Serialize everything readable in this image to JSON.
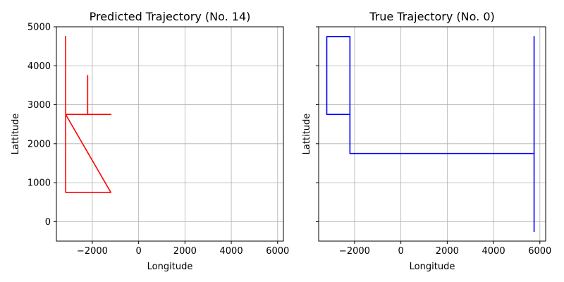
{
  "chart_data": [
    {
      "type": "line",
      "title": "Predicted Trajectory (No. 14)",
      "xlabel": "Longitude",
      "ylabel": "Lattitude",
      "xlim": [
        -3550,
        6250
      ],
      "ylim": [
        -500,
        5000
      ],
      "xticks": [
        -2000,
        0,
        2000,
        4000,
        6000
      ],
      "xtick_labels": [
        "−2000",
        "0",
        "2000",
        "4000",
        "6000"
      ],
      "yticks": [
        0,
        1000,
        2000,
        3000,
        4000,
        5000
      ],
      "ytick_labels": [
        "0",
        "1000",
        "2000",
        "3000",
        "4000",
        "5000"
      ],
      "show_ytick_labels": true,
      "grid": true,
      "series": [
        {
          "color": "#ff0000",
          "x": [
            -3150,
            -3150,
            -1200,
            -3150,
            -3150,
            -2200,
            -2200,
            -2200,
            -1200
          ],
          "y": [
            4750,
            2750,
            750,
            750,
            2750,
            2750,
            3750,
            2750,
            2750
          ]
        }
      ]
    },
    {
      "type": "line",
      "title": "True Trajectory (No. 0)",
      "xlabel": "Longitude",
      "ylabel": "Lattitude",
      "xlim": [
        -3550,
        6250
      ],
      "ylim": [
        -500,
        5000
      ],
      "xticks": [
        -2000,
        0,
        2000,
        4000,
        6000
      ],
      "xtick_labels": [
        "−2000",
        "0",
        "2000",
        "4000",
        "6000"
      ],
      "yticks": [
        0,
        1000,
        2000,
        3000,
        4000,
        5000
      ],
      "ytick_labels": [
        "0",
        "1000",
        "2000",
        "3000",
        "4000",
        "5000"
      ],
      "show_ytick_labels": false,
      "grid": true,
      "series": [
        {
          "color": "#0000ff",
          "x": [
            -3200,
            -3200,
            -2200,
            -2200,
            -3200,
            -3200,
            -2200,
            -2200,
            5750,
            5750,
            5750
          ],
          "y": [
            3750,
            4750,
            4750,
            2750,
            2750,
            4750,
            4750,
            1750,
            1750,
            4750,
            -250
          ]
        }
      ]
    }
  ]
}
